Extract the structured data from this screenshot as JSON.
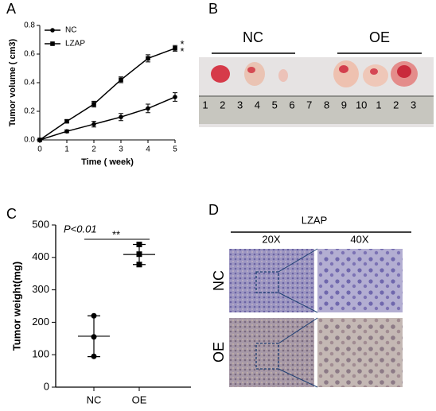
{
  "panels": {
    "labels": [
      "A",
      "B",
      "C",
      "D"
    ]
  },
  "chart_data": [
    {
      "type": "line",
      "xlabel": "Time ( week)",
      "ylabel": "Tumor volume ( cm3)",
      "x": [
        0,
        1,
        2,
        3,
        4,
        5
      ],
      "xlim": [
        0,
        5
      ],
      "xticks": [
        0,
        1,
        2,
        3,
        4,
        5
      ],
      "ylim": [
        0,
        0.8
      ],
      "yticks": [
        {
          "value": 0,
          "label": "0.0"
        },
        0.2,
        0.4,
        0.6,
        0.8
      ],
      "legend": "upper-left",
      "series": [
        {
          "name": "NC",
          "color": "#000000",
          "marker": "circle",
          "values": [
            0,
            0.06,
            0.11,
            0.16,
            0.22,
            0.3
          ],
          "errors": [
            0,
            0.01,
            0.02,
            0.025,
            0.03,
            0.03
          ]
        },
        {
          "name": "LZAP",
          "color": "#000000",
          "marker": "square",
          "values": [
            0,
            0.13,
            0.25,
            0.42,
            0.57,
            0.64
          ],
          "errors": [
            0,
            0.01,
            0.02,
            0.02,
            0.025,
            0.02
          ]
        }
      ],
      "annotations": [
        "*",
        "*"
      ]
    },
    {
      "type": "scatter",
      "ylabel": "Tumor weight(mg)",
      "categories": [
        "NC",
        "OE"
      ],
      "points": [
        [
          220,
          155,
          95
        ],
        [
          440,
          410,
          378
        ]
      ],
      "markers": [
        "circle",
        "square"
      ],
      "means": [
        157,
        409
      ],
      "errors": [
        63,
        31
      ],
      "ylim": [
        0,
        500
      ],
      "yticks": [
        0,
        100,
        200,
        300,
        400,
        500
      ],
      "annotations": [
        "P<0.01",
        "**"
      ]
    }
  ],
  "photo": {
    "groups": [
      "NC",
      "OE"
    ],
    "ruler": [
      1,
      2,
      3,
      4,
      5,
      6,
      7,
      8,
      9,
      10,
      1,
      2,
      3
    ]
  },
  "ihc": {
    "title": "LZAP",
    "columns": [
      "20X",
      "40X"
    ],
    "rows": [
      "NC",
      "OE"
    ]
  }
}
